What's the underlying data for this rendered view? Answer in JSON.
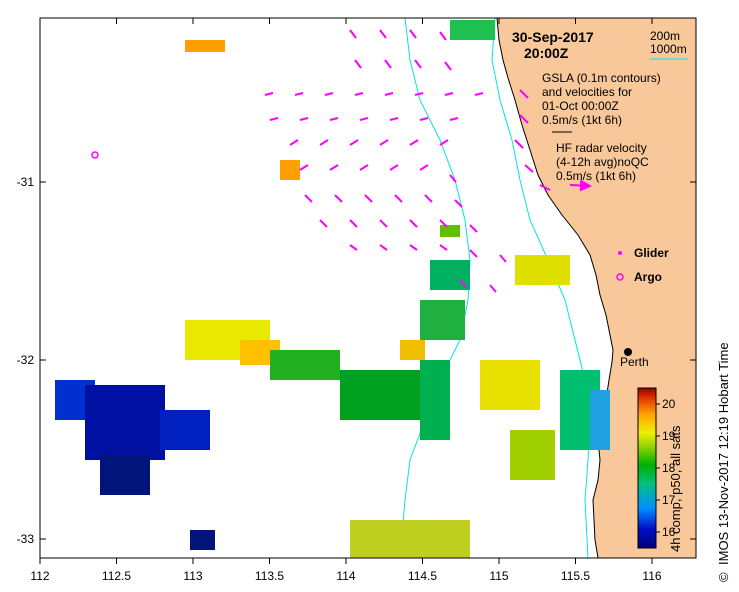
{
  "map": {
    "date": "30-Sep-2017",
    "time": "20:00Z",
    "contour_legend": {
      "label_200": "200m",
      "label_1000": "1000m"
    },
    "gsla_note": [
      "GSLA (0.1m contours)",
      "and velocities for",
      "01-Oct 00:00Z",
      "0.5m/s (1kt 6h)"
    ],
    "hf_note": [
      "HF radar velocity",
      "(4-12h avg)noQC",
      "0.5m/s (1kt 6h)"
    ],
    "glider_label": "Glider",
    "argo_label": "Argo",
    "city_label": "Perth",
    "side_credit": "IMOS 13-Nov-2017 12:19 Hobart Time",
    "copyright": "©",
    "x_ticks": [
      "112",
      "112.5",
      "113",
      "113.5",
      "114",
      "114.5",
      "115",
      "115.5",
      "116"
    ],
    "y_ticks": [
      "-31",
      "-32",
      "-33"
    ],
    "colorbar": {
      "title": "4h comp, p50, all sats",
      "ticks": [
        "20",
        "19",
        "18",
        "17",
        "16"
      ],
      "vmin": 15.5,
      "vmax": 20.5
    },
    "colors": {
      "land": "#f8c89a",
      "arrow": "#ff00ff",
      "contour": "#00e5e5",
      "coast": "#000000"
    }
  }
}
